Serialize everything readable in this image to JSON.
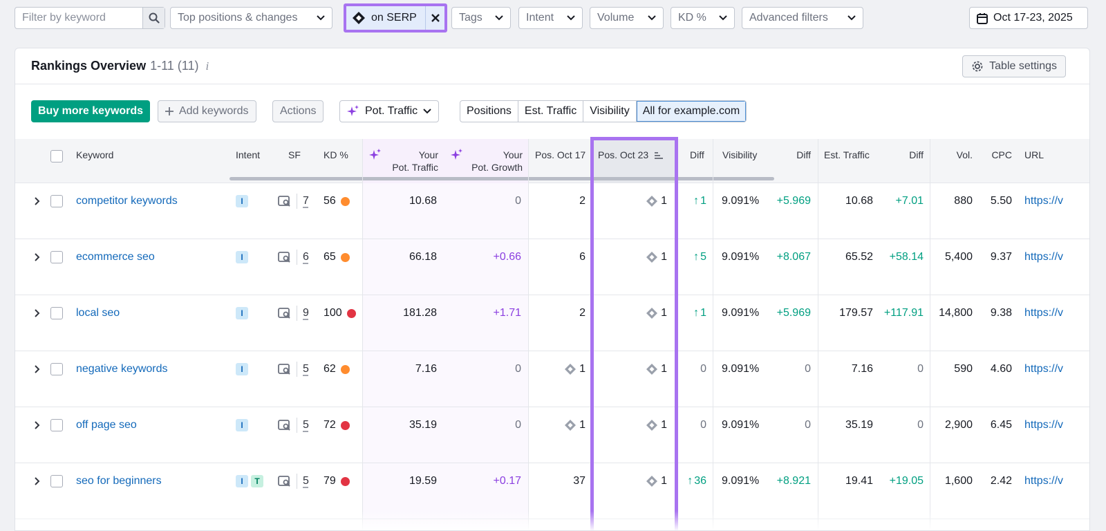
{
  "filters": {
    "search_placeholder": "Filter by keyword",
    "positions": "Top positions & changes",
    "serp_feature": "on SERP",
    "tags": "Tags",
    "intent": "Intent",
    "volume": "Volume",
    "kd": "KD %",
    "advanced": "Advanced filters",
    "date_range": "Oct 17-23, 2025"
  },
  "panel": {
    "title": "Rankings Overview",
    "count": "1-11 (11)",
    "info": "i",
    "table_settings": "Table settings"
  },
  "toolbar": {
    "buy": "Buy more keywords",
    "add": "Add keywords",
    "actions": "Actions",
    "pot_traffic": "Pot. Traffic",
    "segments": [
      "Positions",
      "Est. Traffic",
      "Visibility",
      "All for example.com"
    ],
    "active_segment": "All for example.com"
  },
  "columns": {
    "keyword": "Keyword",
    "intent": "Intent",
    "sf": "SF",
    "kd": "KD %",
    "pot_traffic": [
      "Your",
      "Pot. Traffic"
    ],
    "pot_growth": [
      "Your",
      "Pot. Growth"
    ],
    "pos_oct17": "Pos. Oct 17",
    "pos_oct23": "Pos. Oct 23",
    "diff": "Diff",
    "visibility": "Visibility",
    "vis_diff": "Diff",
    "est_traffic": "Est. Traffic",
    "est_diff": "Diff",
    "vol": "Vol.",
    "cpc": "CPC",
    "url": "URL"
  },
  "colors": {
    "kd_orange": "#ff8c2e",
    "kd_red": "#e23443",
    "highlight": "#a873f0",
    "green": "#009f81",
    "purple": "#8b3fe0",
    "link": "#1369ba"
  },
  "rows": [
    {
      "keyword": "competitor keywords",
      "intents": [
        "I"
      ],
      "sf": "7",
      "kd": "56",
      "kd_color": "orange",
      "pot_traffic": "10.68",
      "pot_growth": "0",
      "pos_oct17": "2",
      "pos_oct17_icon": false,
      "pos_oct23": "1",
      "diff": "1",
      "diff_dir": "up",
      "visibility": "9.091%",
      "vis_diff": "+5.969",
      "est_traffic": "10.68",
      "est_diff": "+7.01",
      "vol": "880",
      "cpc": "5.50",
      "url": "https://v"
    },
    {
      "keyword": "ecommerce seo",
      "intents": [
        "I"
      ],
      "sf": "6",
      "kd": "65",
      "kd_color": "orange",
      "pot_traffic": "66.18",
      "pot_growth": "+0.66",
      "pos_oct17": "6",
      "pos_oct17_icon": false,
      "pos_oct23": "1",
      "diff": "5",
      "diff_dir": "up",
      "visibility": "9.091%",
      "vis_diff": "+8.067",
      "est_traffic": "65.52",
      "est_diff": "+58.14",
      "vol": "5,400",
      "cpc": "9.37",
      "url": "https://v"
    },
    {
      "keyword": "local seo",
      "intents": [
        "I"
      ],
      "sf": "9",
      "kd": "100",
      "kd_color": "red",
      "pot_traffic": "181.28",
      "pot_growth": "+1.71",
      "pos_oct17": "2",
      "pos_oct17_icon": false,
      "pos_oct23": "1",
      "diff": "1",
      "diff_dir": "up",
      "visibility": "9.091%",
      "vis_diff": "+5.969",
      "est_traffic": "179.57",
      "est_diff": "+117.91",
      "vol": "14,800",
      "cpc": "9.38",
      "url": "https://v"
    },
    {
      "keyword": "negative keywords",
      "intents": [
        "I"
      ],
      "sf": "5",
      "kd": "62",
      "kd_color": "orange",
      "pot_traffic": "7.16",
      "pot_growth": "0",
      "pos_oct17": "1",
      "pos_oct17_icon": true,
      "pos_oct23": "1",
      "diff": "0",
      "diff_dir": "none",
      "visibility": "9.091%",
      "vis_diff": "0",
      "est_traffic": "7.16",
      "est_diff": "0",
      "vol": "590",
      "cpc": "4.60",
      "url": "https://v"
    },
    {
      "keyword": "off page seo",
      "intents": [
        "I"
      ],
      "sf": "5",
      "kd": "72",
      "kd_color": "red",
      "pot_traffic": "35.19",
      "pot_growth": "0",
      "pos_oct17": "1",
      "pos_oct17_icon": true,
      "pos_oct23": "1",
      "diff": "0",
      "diff_dir": "none",
      "visibility": "9.091%",
      "vis_diff": "0",
      "est_traffic": "35.19",
      "est_diff": "0",
      "vol": "2,900",
      "cpc": "6.45",
      "url": "https://v"
    },
    {
      "keyword": "seo for beginners",
      "intents": [
        "I",
        "T"
      ],
      "sf": "5",
      "kd": "79",
      "kd_color": "red",
      "pot_traffic": "19.59",
      "pot_growth": "+0.17",
      "pos_oct17": "37",
      "pos_oct17_icon": false,
      "pos_oct23": "1",
      "diff": "36",
      "diff_dir": "up",
      "visibility": "9.091%",
      "vis_diff": "+8.921",
      "est_traffic": "19.41",
      "est_diff": "+19.05",
      "vol": "1,600",
      "cpc": "2.42",
      "url": "https://v"
    }
  ]
}
